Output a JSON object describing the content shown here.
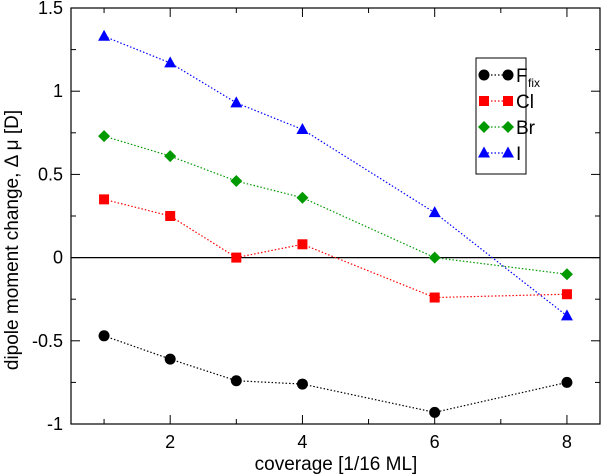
{
  "chart_data": {
    "type": "line",
    "xlabel": "coverage [1/16 ML]",
    "ylabel": "dipole moment change, Δ μ [D]",
    "xlim": [
      0.5,
      8.5
    ],
    "ylim": [
      -1,
      1.5
    ],
    "x_ticks": [
      2,
      4,
      6,
      8
    ],
    "y_ticks": [
      1.5,
      1,
      0.5,
      0,
      -0.5,
      -1
    ],
    "y_tick_labels": [
      "1.5",
      "1",
      "0.5",
      "0",
      "-0.5",
      "-1"
    ],
    "grid": false,
    "zero_line": true,
    "legend_position": "top-right",
    "series": [
      {
        "name": "F",
        "subscript": "fix",
        "color": "#000000",
        "marker": "circle",
        "x": [
          1,
          2,
          3,
          4,
          6,
          8
        ],
        "values": [
          -0.47,
          -0.61,
          -0.74,
          -0.76,
          -0.93,
          -0.75
        ]
      },
      {
        "name": "Cl",
        "color": "#ff0000",
        "marker": "square",
        "x": [
          1,
          2,
          3,
          4,
          6,
          8
        ],
        "values": [
          0.35,
          0.25,
          0.0,
          0.08,
          -0.24,
          -0.22
        ]
      },
      {
        "name": "Br",
        "color": "#009900",
        "marker": "diamond",
        "x": [
          1,
          2,
          3,
          4,
          6,
          8
        ],
        "values": [
          0.73,
          0.61,
          0.46,
          0.36,
          0.0,
          -0.1
        ]
      },
      {
        "name": "I",
        "color": "#0000ff",
        "marker": "triangle",
        "x": [
          1,
          2,
          3,
          4,
          6,
          8
        ],
        "values": [
          1.33,
          1.17,
          0.93,
          0.77,
          0.27,
          -0.35
        ]
      }
    ]
  }
}
